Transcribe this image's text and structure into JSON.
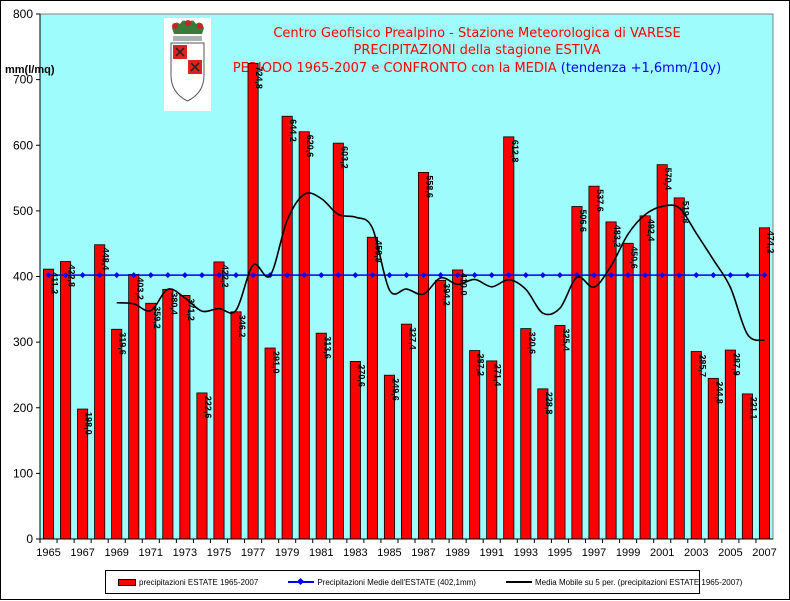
{
  "title": {
    "line1": "Centro Geofisico Prealpino - Stazione Meteorologica di VARESE",
    "line2": "PRECIPITAZIONI della stagione ESTIVA",
    "line3": "PERIODO 1965-2007 e CONFRONTO con la MEDIA",
    "line3_blue": "(tendenza +1,6mm/10y)"
  },
  "logo": {
    "icon": "varese-coat-of-arms-icon"
  },
  "colors": {
    "plot_background": "#9ffcfc",
    "bar_fill": "#ff0000",
    "mean_line": "#0000ff",
    "moving_average": "#000000",
    "title_text": "#ff0000",
    "trend_text": "#0000ff"
  },
  "chart_data": {
    "type": "bar",
    "ylabel": "mm(l/mq)",
    "ylim": [
      0,
      800
    ],
    "yticks": [
      0,
      100,
      200,
      300,
      400,
      500,
      600,
      700,
      800
    ],
    "grid": false,
    "legend_position": "bottom",
    "x_tick_labels": [
      "1965",
      "1967",
      "1969",
      "1971",
      "1973",
      "1975",
      "1977",
      "1979",
      "1981",
      "1983",
      "1985",
      "1987",
      "1989",
      "1991",
      "1993",
      "1995",
      "1997",
      "1999",
      "2001",
      "2003",
      "2005",
      "2007"
    ],
    "categories": [
      "1965",
      "1966",
      "1967",
      "1968",
      "1969",
      "1970",
      "1971",
      "1972",
      "1973",
      "1974",
      "1975",
      "1976",
      "1977",
      "1978",
      "1979",
      "1980",
      "1981",
      "1982",
      "1983",
      "1984",
      "1985",
      "1986",
      "1987",
      "1988",
      "1989",
      "1990",
      "1991",
      "1992",
      "1993",
      "1994",
      "1995",
      "1996",
      "1997",
      "1998",
      "1999",
      "2000",
      "2001",
      "2002",
      "2003",
      "2004",
      "2005",
      "2006",
      "2007"
    ],
    "series": [
      {
        "name": "precipitazioni ESTATE 1965-2007",
        "kind": "bar",
        "values": [
          411.2,
          422.8,
          198.0,
          448.4,
          319.6,
          403.2,
          359.2,
          380.4,
          371.2,
          222.6,
          422.2,
          346.2,
          724.8,
          291.0,
          644.2,
          620.6,
          313.6,
          603.2,
          270.6,
          459.8,
          249.6,
          327.4,
          558.6,
          394.2,
          410.0,
          287.2,
          271.4,
          612.8,
          320.6,
          228.8,
          325.4,
          506.6,
          537.6,
          483.2,
          450.6,
          492.4,
          570.4,
          519.8,
          285.7,
          244.8,
          287.9,
          221.1,
          474.2
        ],
        "labels": [
          "411,2",
          "422,8",
          "198,0",
          "448,4",
          "319,6",
          "403,2",
          "359,2",
          "380,4",
          "371,2",
          "222,6",
          "422,2",
          "346,2",
          "724,8",
          "291,0",
          "644,2",
          "620,6",
          "313,6",
          "603,2",
          "270,6",
          "459,8",
          "249,6",
          "327,4",
          "558,6",
          "394,2",
          "410,0",
          "287,2",
          "271,4",
          "612,8",
          "320,6",
          "228,8",
          "325,4",
          "506,6",
          "537,6",
          "483,2",
          "450,6",
          "492,4",
          "570,4",
          "519,8",
          "285,7",
          "244,8",
          "287,9",
          "221,1",
          "474,2"
        ]
      },
      {
        "name": "Precipitazioni Medie dell'ESTATE (402,1mm)",
        "kind": "line",
        "values": [
          402.1,
          402.1,
          402.1,
          402.1,
          402.1,
          402.1,
          402.1,
          402.1,
          402.1,
          402.1,
          402.1,
          402.1,
          402.1,
          402.1,
          402.1,
          402.1,
          402.1,
          402.1,
          402.1,
          402.1,
          402.1,
          402.1,
          402.1,
          402.1,
          402.1,
          402.1,
          402.1,
          402.1,
          402.1,
          402.1,
          402.1,
          402.1,
          402.1,
          402.1,
          402.1,
          402.1,
          402.1,
          402.1,
          402.1,
          402.1,
          402.1,
          402.1,
          402.1
        ]
      },
      {
        "name": "Media Mobile su 5 per. (precipitazioni ESTATE 1965-2007)",
        "kind": "line",
        "values": [
          null,
          null,
          null,
          null,
          360.0,
          358.4,
          348.0,
          380.5,
          367.4,
          347.3,
          351.2,
          348.5,
          417.4,
          401.4,
          485.7,
          525.3,
          518.8,
          494.5,
          490.4,
          473.8,
          379.5,
          380.9,
          373.1,
          397.9,
          388.0,
          395.5,
          384.3,
          395.1,
          380.4,
          344.1,
          351.7,
          398.8,
          383.8,
          416.1,
          464.7,
          494.3,
          506.8,
          504.5,
          465.9,
          425.6,
          383.4,
          311.9,
          302.7
        ]
      }
    ]
  }
}
